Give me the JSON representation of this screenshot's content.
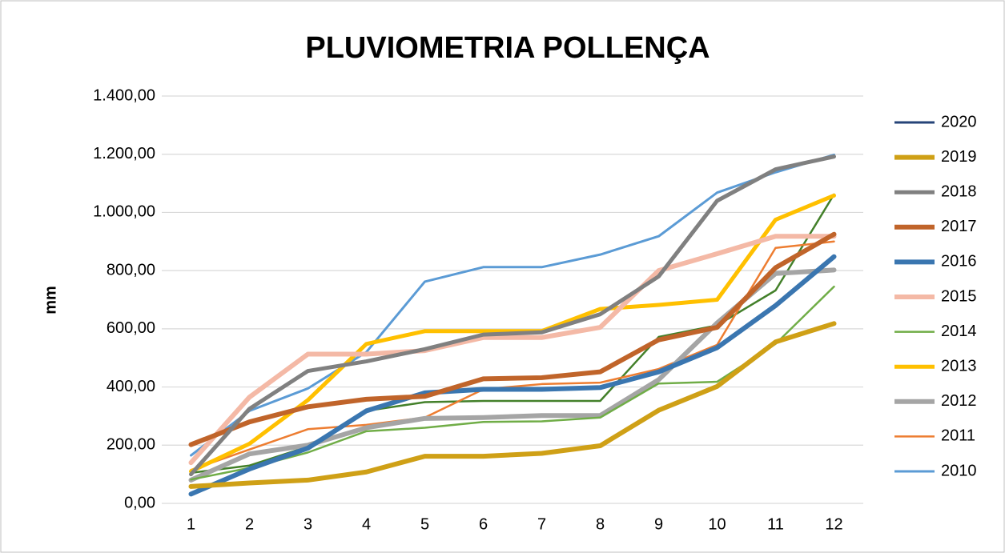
{
  "chart_data": {
    "type": "line",
    "title": "PLUVIOMETRIA  POLLENÇA",
    "y_label": "mm",
    "categories": [
      1,
      2,
      3,
      4,
      5,
      6,
      7,
      8,
      9,
      10,
      11,
      12
    ],
    "ylim": [
      0,
      1400
    ],
    "yticks": [
      {
        "value": 0,
        "label": "0,00"
      },
      {
        "value": 200,
        "label": "200,00"
      },
      {
        "value": 400,
        "label": "400,00"
      },
      {
        "value": 600,
        "label": "600,00"
      },
      {
        "value": 800,
        "label": "800,00"
      },
      {
        "value": 1000,
        "label": "1.000,00"
      },
      {
        "value": 1200,
        "label": "1.200,00"
      },
      {
        "value": 1400,
        "label": "1.400,00"
      }
    ],
    "grid": true,
    "legend": "right",
    "series": [
      {
        "name": "2020",
        "color": "#264478",
        "line_width": 3,
        "values": [
          null,
          null,
          null,
          null,
          null,
          null,
          null,
          null,
          null,
          null,
          null,
          null
        ]
      },
      {
        "name": "2019",
        "color": "#cfa016",
        "line_width": 6,
        "values": [
          58,
          70,
          80,
          108,
          162,
          162,
          172,
          198,
          320,
          402,
          555,
          618
        ]
      },
      {
        "name": "2018",
        "color": "#808080",
        "line_width": 5,
        "values": [
          100,
          325,
          455,
          488,
          530,
          580,
          588,
          650,
          780,
          1040,
          1148,
          1192
        ]
      },
      {
        "name": "2017",
        "color": "#c0642a",
        "line_width": 6,
        "values": [
          202,
          280,
          332,
          358,
          368,
          428,
          432,
          452,
          562,
          605,
          810,
          925
        ]
      },
      {
        "name": "2016",
        "color": "#3a76b0",
        "line_width": 6,
        "values": [
          32,
          118,
          190,
          318,
          380,
          392,
          392,
          398,
          452,
          535,
          680,
          848
        ]
      },
      {
        "name": "2015",
        "color": "#f4b9a6",
        "line_width": 6,
        "values": [
          140,
          365,
          513,
          513,
          525,
          570,
          570,
          605,
          800,
          858,
          918,
          918
        ]
      },
      {
        "name": "2014",
        "color": "#70ad47",
        "line_width": 2.5,
        "values": [
          82,
          122,
          175,
          248,
          260,
          280,
          282,
          295,
          412,
          418,
          548,
          745
        ]
      },
      {
        "name": "2013",
        "color": "#ffc000",
        "line_width": 5,
        "values": [
          110,
          205,
          355,
          548,
          592,
          592,
          592,
          668,
          682,
          700,
          975,
          1058
        ]
      },
      {
        "name": "2012",
        "color": "#a5a5a5",
        "line_width": 6,
        "values": [
          80,
          170,
          200,
          260,
          292,
          295,
          302,
          302,
          425,
          620,
          790,
          802
        ]
      },
      {
        "name": "2011",
        "color": "#ed7d31",
        "line_width": 2.5,
        "values": [
          115,
          185,
          255,
          270,
          295,
          392,
          410,
          415,
          462,
          545,
          878,
          900
        ]
      },
      {
        "name": "2010",
        "color": "#5b9bd5",
        "line_width": 3,
        "values": [
          165,
          318,
          395,
          520,
          762,
          812,
          812,
          855,
          918,
          1068,
          1138,
          1198
        ]
      },
      {
        "color": "#43802a",
        "line_width": 2.5,
        "values": [
          105,
          130,
          195,
          318,
          348,
          352,
          352,
          352,
          572,
          612,
          732,
          1062
        ]
      }
    ]
  }
}
